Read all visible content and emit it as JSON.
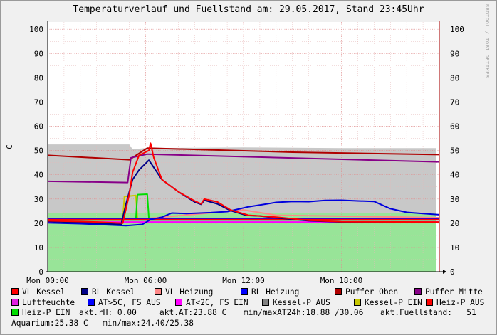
{
  "chart_data": {
    "type": "line",
    "title": "Temperaturverlauf und Fuellstand am: 29.05.2017, Stand 23:45Uhr",
    "watermark": "RRDTOOL / TOBI OETIKER",
    "ylabel": "C",
    "ylim": [
      0,
      103
    ],
    "xlim": [
      0,
      24
    ],
    "yticks": [
      0,
      10,
      20,
      30,
      40,
      50,
      60,
      70,
      80,
      90,
      100
    ],
    "xticks": [
      {
        "v": 0,
        "label": "Mon 00:00"
      },
      {
        "v": 6,
        "label": "Mon 06:00"
      },
      {
        "v": 12,
        "label": "Mon 12:00"
      },
      {
        "v": 18,
        "label": "Mon 18:00"
      }
    ],
    "fill_areas": [
      {
        "name": "Fuellstand-Bereich",
        "color": "#c8c8c8",
        "points": [
          [
            0,
            52.5
          ],
          [
            5,
            52.5
          ],
          [
            5.2,
            50.5
          ],
          [
            6,
            51
          ],
          [
            12,
            51.3
          ],
          [
            18,
            51
          ],
          [
            23.8,
            51
          ],
          [
            23.8,
            0
          ]
        ]
      },
      {
        "name": "Luftfeuchte-Bereich",
        "color": "#98e498",
        "points": [
          [
            0,
            24.3
          ],
          [
            12,
            24.3
          ],
          [
            23.8,
            24.3
          ],
          [
            23.8,
            0
          ]
        ]
      }
    ],
    "series": [
      {
        "name": "Luftfeuchte",
        "color": "#e020e0",
        "points": []
      },
      {
        "name": "Puffer Oben",
        "color": "#b00000",
        "points": [
          [
            0,
            48
          ],
          [
            5,
            46.2
          ],
          [
            6.1,
            51
          ],
          [
            15,
            49.3
          ],
          [
            24,
            48.3
          ]
        ]
      },
      {
        "name": "Puffer Mitte",
        "color": "#880088",
        "points": [
          [
            0,
            37.3
          ],
          [
            4.9,
            36.8
          ],
          [
            5.1,
            47
          ],
          [
            6.1,
            48.5
          ],
          [
            24,
            45.3
          ]
        ]
      },
      {
        "name": "Kessel-P EIN",
        "color": "#c8c800",
        "points": [
          [
            0,
            21.3
          ],
          [
            4.6,
            21.2
          ],
          [
            4.7,
            31
          ],
          [
            5.4,
            31.5
          ],
          [
            5.5,
            22
          ],
          [
            6,
            21.8
          ],
          [
            24,
            21.6
          ]
        ]
      },
      {
        "name": "Heiz-P EIN",
        "color": "#00dd00",
        "points": [
          [
            0,
            21.5
          ],
          [
            5.4,
            21.5
          ],
          [
            5.5,
            31.8
          ],
          [
            6.1,
            32
          ],
          [
            6.2,
            22
          ],
          [
            7,
            21.7
          ],
          [
            24,
            21.6
          ]
        ]
      },
      {
        "name": "VL Heizung",
        "color": "#ff8888",
        "points": [
          [
            0,
            21.5
          ],
          [
            5,
            21.3
          ],
          [
            12,
            25.5
          ],
          [
            14,
            23.3
          ],
          [
            24,
            22.3
          ]
        ]
      },
      {
        "name": "AT>5C, FS AUS",
        "color": "#0000ff",
        "points": [
          [
            0,
            21.8
          ],
          [
            6.5,
            21.8
          ],
          [
            24,
            21.8
          ]
        ]
      },
      {
        "name": "AT<2C, FS EIN",
        "color": "#ff00ff",
        "points": [
          [
            0,
            20.5
          ],
          [
            24,
            20.5
          ]
        ]
      },
      {
        "name": "Kessel-P AUS",
        "color": "#707070",
        "points": [
          [
            0,
            21.3
          ],
          [
            24,
            21.3
          ]
        ]
      },
      {
        "name": "Heiz-P AUS",
        "color": "#ff0000",
        "points": [
          [
            0,
            21.5
          ],
          [
            24,
            21.5
          ]
        ]
      },
      {
        "name": "RL Heizung",
        "color": "#0000dd",
        "points": [
          [
            0,
            20.2
          ],
          [
            2,
            19.8
          ],
          [
            4.8,
            19
          ],
          [
            5.8,
            19.5
          ],
          [
            6.3,
            21.5
          ],
          [
            7,
            22.5
          ],
          [
            7.6,
            24.2
          ],
          [
            8.5,
            24
          ],
          [
            10,
            24.4
          ],
          [
            11,
            24.8
          ],
          [
            11.8,
            26
          ],
          [
            12.3,
            26.8
          ],
          [
            13,
            27.5
          ],
          [
            14,
            28.6
          ],
          [
            15,
            29
          ],
          [
            16,
            28.9
          ],
          [
            17,
            29.4
          ],
          [
            18,
            29.5
          ],
          [
            19,
            29.2
          ],
          [
            20,
            29
          ],
          [
            21,
            26
          ],
          [
            22,
            24.5
          ],
          [
            23,
            24
          ],
          [
            24,
            23.5
          ]
        ]
      },
      {
        "name": "RL Kessel",
        "color": "#000088",
        "points": [
          [
            0,
            20.8
          ],
          [
            3,
            20
          ],
          [
            4.5,
            19.5
          ],
          [
            4.8,
            28
          ],
          [
            5.2,
            38
          ],
          [
            5.6,
            42
          ],
          [
            6.2,
            46
          ],
          [
            7,
            38
          ],
          [
            8,
            33
          ],
          [
            9,
            28.8
          ],
          [
            9.4,
            27.8
          ],
          [
            9.6,
            29.5
          ],
          [
            10.4,
            28
          ],
          [
            11.2,
            25.2
          ],
          [
            12.2,
            23.2
          ],
          [
            13,
            23
          ],
          [
            14,
            22.2
          ],
          [
            16,
            21
          ],
          [
            18,
            20.5
          ],
          [
            24,
            20.3
          ]
        ]
      },
      {
        "name": "VL Kessel",
        "color": "#ff0000",
        "points": [
          [
            0,
            21
          ],
          [
            3,
            20.5
          ],
          [
            4.6,
            20
          ],
          [
            5,
            32
          ],
          [
            5.2,
            41
          ],
          [
            5.6,
            48
          ],
          [
            6.2,
            50
          ],
          [
            6.3,
            53
          ],
          [
            6.5,
            47
          ],
          [
            7,
            38
          ],
          [
            8,
            33
          ],
          [
            9,
            29.2
          ],
          [
            9.4,
            28
          ],
          [
            9.6,
            30
          ],
          [
            10.4,
            28.8
          ],
          [
            11.2,
            25.5
          ],
          [
            12.3,
            23.3
          ],
          [
            13,
            23
          ],
          [
            14,
            22.5
          ],
          [
            16,
            21.2
          ],
          [
            18,
            20.6
          ],
          [
            24,
            20.5
          ]
        ]
      }
    ]
  },
  "legend_items": [
    {
      "label": "VL Kessel",
      "color": "#ff0000"
    },
    {
      "label": "RL Kessel",
      "color": "#000088"
    },
    {
      "label": "VL Heizung",
      "color": "#ff8888"
    },
    {
      "label": "RL Heizung",
      "color": "#0000ff"
    },
    {
      "label": "Puffer Oben",
      "color": "#b00000"
    },
    {
      "label": "Puffer Mitte",
      "color": "#880088"
    },
    {
      "label": "Luftfeuchte",
      "color": "#e020e0"
    },
    {
      "label": "AT>5C, FS AUS",
      "color": "#0000ff"
    },
    {
      "label": "AT<2C, FS EIN",
      "color": "#ff00ff"
    },
    {
      "label": "Kessel-P AUS",
      "color": "#808080"
    },
    {
      "label": "Kessel-P EIN",
      "color": "#c8c800"
    },
    {
      "label": "Heiz-P AUS",
      "color": "#ff0000"
    },
    {
      "label": "Heiz-P EIN",
      "color": "#00dd00"
    }
  ],
  "stats": {
    "rh": "akt.rH: 0.00",
    "at": "akt.AT:23.88 C",
    "minmax_at": "min/maxAT24h:18.88 /30.06",
    "fuellstand": "akt.Fuellstand:   51",
    "aquarium": "Aquarium:25.38 C",
    "minmax_aq": "min/max:24.40/25.38"
  }
}
